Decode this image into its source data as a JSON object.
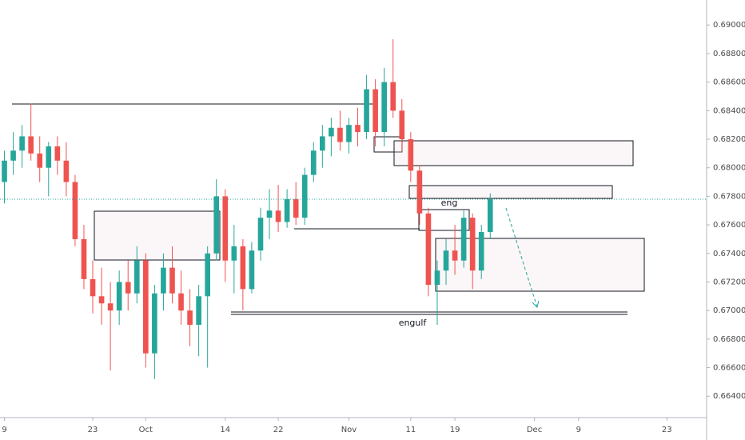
{
  "chart_data": {
    "type": "candlestick",
    "categories": [
      "9",
      null,
      null,
      null,
      null,
      null,
      null,
      null,
      null,
      null,
      "23",
      null,
      null,
      null,
      null,
      null,
      "Oct",
      null,
      null,
      null,
      null,
      null,
      null,
      null,
      null,
      "14",
      null,
      null,
      null,
      null,
      null,
      "22",
      null,
      null,
      null,
      null,
      null,
      null,
      null,
      "Nov",
      null,
      null,
      null,
      null,
      null,
      null,
      "11",
      null,
      null,
      null,
      null,
      "19",
      null,
      null,
      null,
      null,
      null,
      null,
      null,
      null,
      "Dec",
      null,
      null,
      null,
      null,
      "9",
      null,
      null,
      null,
      null,
      null,
      null,
      null,
      null,
      null,
      "23",
      null,
      null,
      null,
      null
    ],
    "open": [
      0.679,
      0.6805,
      0.6812,
      0.6822,
      0.681,
      0.68,
      0.6815,
      0.6805,
      0.679,
      0.675,
      0.6722,
      0.671,
      0.6705,
      0.67,
      0.672,
      0.6712,
      0.6735,
      0.667,
      0.6712,
      0.673,
      0.6712,
      0.67,
      0.669,
      0.671,
      0.674,
      0.678,
      0.6735,
      0.6745,
      0.6715,
      0.6742,
      0.6765,
      0.677,
      0.6762,
      0.6778,
      0.6765,
      0.6795,
      0.6812,
      0.6822,
      0.6828,
      0.6818,
      0.683,
      0.6825,
      0.6855,
      0.6825,
      0.686,
      0.684,
      0.682,
      0.6798,
      0.6768,
      0.6718,
      0.6728,
      0.6742,
      0.6735,
      0.6765,
      0.6728,
      0.6755,
      null,
      null,
      null,
      null,
      null,
      null,
      null,
      null,
      null,
      null,
      null,
      null,
      null,
      null,
      null,
      null,
      null,
      null,
      null,
      null,
      null,
      null,
      null,
      null
    ],
    "high": [
      0.6812,
      0.6825,
      0.683,
      0.6845,
      0.6822,
      0.6818,
      0.6822,
      0.6818,
      0.6795,
      0.676,
      0.6735,
      0.673,
      0.672,
      0.6728,
      0.6735,
      0.6745,
      0.674,
      0.6718,
      0.674,
      0.6745,
      0.6728,
      0.6715,
      0.6718,
      0.6745,
      0.6792,
      0.6785,
      0.676,
      0.675,
      0.6748,
      0.6772,
      0.6785,
      0.6788,
      0.6785,
      0.679,
      0.68,
      0.6818,
      0.683,
      0.6835,
      0.684,
      0.6835,
      0.6842,
      0.6865,
      0.6862,
      0.687,
      0.689,
      0.6848,
      0.6825,
      0.6802,
      0.6772,
      0.6735,
      0.675,
      0.676,
      0.677,
      0.6768,
      0.676,
      0.6782,
      null,
      null,
      null,
      null,
      null,
      null,
      null,
      null,
      null,
      null,
      null,
      null,
      null,
      null,
      null,
      null,
      null,
      null,
      null,
      null,
      null,
      null,
      null,
      null
    ],
    "low": [
      0.6775,
      0.6795,
      0.68,
      0.6805,
      0.679,
      0.678,
      0.6795,
      0.678,
      0.6745,
      0.6715,
      0.6698,
      0.669,
      0.6658,
      0.669,
      0.67,
      0.6705,
      0.666,
      0.6652,
      0.67,
      0.6705,
      0.669,
      0.6675,
      0.6668,
      0.666,
      0.6735,
      0.672,
      0.6712,
      0.67,
      0.6712,
      0.6735,
      0.675,
      0.6755,
      0.6758,
      0.676,
      0.676,
      0.679,
      0.68,
      0.6808,
      0.6812,
      0.681,
      0.6815,
      0.682,
      0.6815,
      0.6815,
      0.6835,
      0.6812,
      0.679,
      0.676,
      0.671,
      0.669,
      0.6718,
      0.6725,
      0.673,
      0.6715,
      0.6722,
      0.675,
      null,
      null,
      null,
      null,
      null,
      null,
      null,
      null,
      null,
      null,
      null,
      null,
      null,
      null,
      null,
      null,
      null,
      null,
      null,
      null,
      null,
      null,
      null,
      null
    ],
    "close": [
      0.6805,
      0.6812,
      0.6822,
      0.681,
      0.68,
      0.6815,
      0.6805,
      0.679,
      0.675,
      0.6722,
      0.671,
      0.6705,
      0.67,
      0.672,
      0.6712,
      0.6735,
      0.667,
      0.6712,
      0.673,
      0.6712,
      0.67,
      0.669,
      0.671,
      0.674,
      0.678,
      0.6735,
      0.6745,
      0.6715,
      0.6742,
      0.6765,
      0.677,
      0.6762,
      0.6778,
      0.6765,
      0.6795,
      0.6812,
      0.6822,
      0.6828,
      0.6818,
      0.683,
      0.6825,
      0.6855,
      0.6825,
      0.686,
      0.684,
      0.682,
      0.6798,
      0.6768,
      0.6718,
      0.6728,
      0.6742,
      0.6735,
      0.6765,
      0.6728,
      0.6755,
      0.6778,
      null,
      null,
      null,
      null,
      null,
      null,
      null,
      null,
      null,
      null,
      null,
      null,
      null,
      null,
      null,
      null,
      null,
      null,
      null,
      null,
      null,
      null,
      null,
      null
    ],
    "up_color": "#26a69a",
    "down_color": "#ef5350",
    "ylim": [
      0.6625,
      0.69175
    ],
    "yticks": [
      {
        "value": 0.69,
        "label": "0.69000"
      },
      {
        "value": 0.688,
        "label": "0.68800"
      },
      {
        "value": 0.686,
        "label": "0.68600"
      },
      {
        "value": 0.684,
        "label": "0.68400"
      },
      {
        "value": 0.682,
        "label": "0.68200"
      },
      {
        "value": 0.68,
        "label": "0.68000"
      },
      {
        "value": 0.678,
        "label": "0.67800"
      },
      {
        "value": 0.676,
        "label": "0.67600"
      },
      {
        "value": 0.674,
        "label": "0.67400"
      },
      {
        "value": 0.672,
        "label": "0.67200"
      },
      {
        "value": 0.67,
        "label": "0.67000"
      },
      {
        "value": 0.668,
        "label": "0.66800"
      },
      {
        "value": 0.666,
        "label": "0.66600"
      },
      {
        "value": 0.664,
        "label": "0.66400"
      }
    ],
    "annotations": [
      "eng",
      "engulf"
    ]
  }
}
